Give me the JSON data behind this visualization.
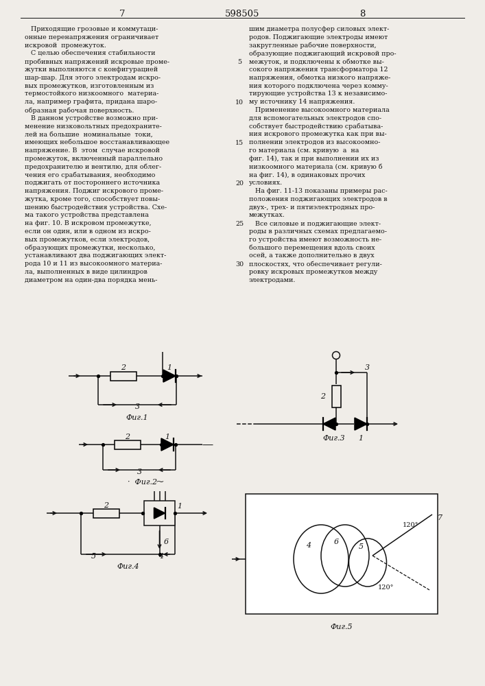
{
  "title_center": "598505",
  "page_left": "7",
  "page_right": "8",
  "bg_color": "#f0ede8",
  "text_color": "#111111",
  "line_color": "#111111",
  "left_column_text": [
    "   Приходящие грозовые и коммутаци-",
    "онные перенапряжения ограничивает",
    "искровой  промежуток.",
    "   С целью обеспечения стабильности",
    "пробивных напряжений искровые проме-",
    "жутки выполняются с конфигурацией",
    "шар-шар. Для этого электродам искро-",
    "вых промежутков, изготовленным из",
    "термостойкого низкоомного  материа-",
    "ла, например графита, придана шаро-",
    "образная рабочая поверхность.",
    "   В данном устройстве возможно при-",
    "менение низковольтных предохраните-",
    "лей на большие  номинальные  токи,",
    "имеющих небольшое восстанавливающее",
    "напряжение. В  этом  случае искровой",
    "промежуток, включенный параллельно",
    "предохранителю и вентилю, для облег-",
    "чения его срабатывания, необходимо",
    "поджигать от постороннего источника",
    "напряжения. Поджиг искрового проме-",
    "жутка, кроме того, способствует повы-",
    "шению быстродействия устройства. Схе-",
    "ма такого устройства представлена",
    "на фиг. 10. В искровом промежутке,",
    "если он один, или в одном из искро-",
    "вых промежутков, если электродов,",
    "образующих промежутки, несколько,",
    "устанавливают два поджигающих элект-",
    "рода 10 и 11 из высокоомного материа-",
    "ла, выполненных в виде цилиндров",
    "диаметром на один-два порядка мень-"
  ],
  "right_column_text": [
    "шим диаметра полусфер силовых элект-",
    "родов. Поджигающие электроды имеют",
    "закругленные рабочие поверхности,",
    "образующие поджигающий искровой про-",
    "межуток, и подключены к обмотке вы-",
    "сокого напряжения трансформатора 12",
    "напряжения, обмотка низкого напряже-",
    "ния которого подключена через комму-",
    "тирующие устройства 13 к независимо-",
    "му источнику 14 напряжения.",
    "   Применение высокоомного материала",
    "для вспомогательных электродов спо-",
    "собствует быстродействию срабатыва-",
    "ния искрового промежутка как при вы-",
    "полнении электродов из высокоомно-",
    "го материала (см. кривую  а  на",
    "фиг. 14), так и при выполнении их из",
    "низкоомного материала (см. кривую б",
    "на фиг. 14), в одинаковых прочих",
    "условиях.",
    "   На фиг. 11-13 показаны примеры рас-",
    "положения поджигающих электродов в",
    "двух-, трех- и пятиэлектродных про-",
    "межутках.",
    "   Все силовые и поджигающие элект-",
    "роды в различных схемах предлагаемо-",
    "го устройства имеют возможность не-",
    "большого перемещения вдоль своих",
    "осей, а также дополнительно в двух",
    "плоскостях, что обеспечивает регули-",
    "ровку искровых промежутков между",
    "электродами."
  ]
}
